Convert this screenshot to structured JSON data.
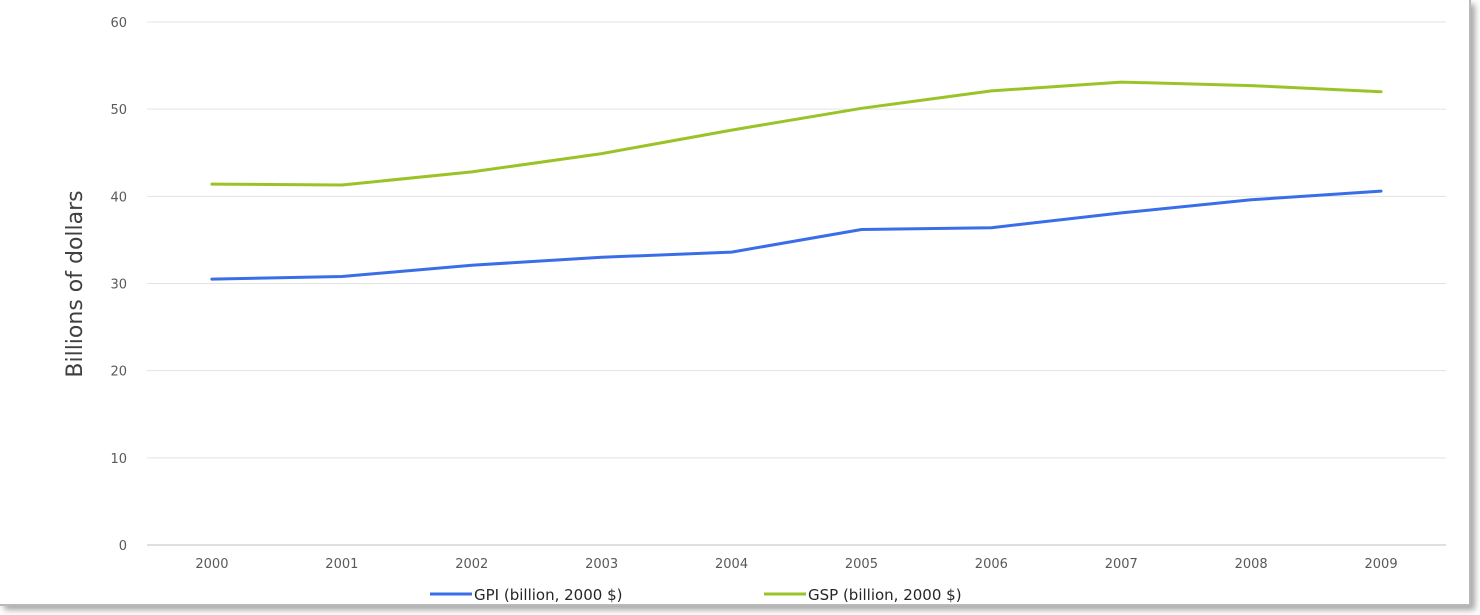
{
  "chart_data": {
    "type": "line",
    "title": "",
    "xlabel": "",
    "ylabel": "Billions of dollars",
    "categories": [
      "2000",
      "2001",
      "2002",
      "2003",
      "2004",
      "2005",
      "2006",
      "2007",
      "2008",
      "2009"
    ],
    "ylim": [
      0,
      60
    ],
    "yticks": [
      0,
      10,
      20,
      30,
      40,
      50,
      60
    ],
    "grid": true,
    "legend_position": "bottom",
    "series": [
      {
        "name": "GPI (billion, 2000 $)",
        "color": "#3a6ee8",
        "values": [
          30.5,
          30.8,
          32.1,
          33.0,
          33.6,
          36.2,
          36.4,
          38.1,
          39.6,
          40.6
        ]
      },
      {
        "name": "GSP (billion, 2000 $)",
        "color": "#9bc328",
        "values": [
          41.4,
          41.3,
          42.8,
          44.9,
          47.6,
          50.1,
          52.1,
          53.1,
          52.7,
          52.0
        ]
      }
    ]
  }
}
